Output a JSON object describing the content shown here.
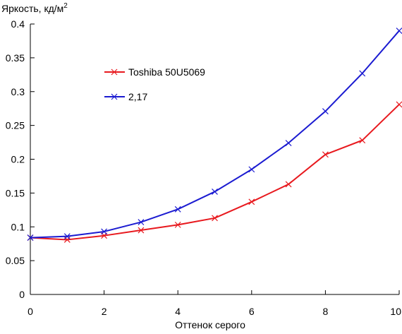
{
  "chart_data": {
    "type": "line",
    "title": "",
    "ylabel": "Яркость, кд/м",
    "ylabel_sup": "2",
    "xlabel": "Оттенок серого",
    "xlim": [
      0,
      10
    ],
    "ylim": [
      0,
      0.4
    ],
    "x_ticks": [
      0,
      2,
      4,
      6,
      8,
      10
    ],
    "x_tick_labels": [
      "0",
      "2",
      "4",
      "6",
      "8",
      "10"
    ],
    "y_ticks": [
      0,
      0.05,
      0.1,
      0.15,
      0.2,
      0.25,
      0.3,
      0.35,
      0.4
    ],
    "y_tick_labels": [
      "0",
      "0.05",
      "0.1",
      "0.15",
      "0.2",
      "0.25",
      "0.3",
      "0.35",
      "0.4"
    ],
    "grid": false,
    "legend_position": "upper-left-inside",
    "marker": "x",
    "x": [
      0,
      1,
      2,
      3,
      4,
      5,
      6,
      7,
      8,
      9,
      10
    ],
    "series": [
      {
        "name": "Toshiba 50U5069",
        "color": "#e8191e",
        "values": [
          0.084,
          0.081,
          0.087,
          0.095,
          0.103,
          0.113,
          0.137,
          0.163,
          0.207,
          0.228,
          0.281
        ]
      },
      {
        "name": "2,17",
        "color": "#1b1bd1",
        "values": [
          0.084,
          0.086,
          0.093,
          0.107,
          0.126,
          0.152,
          0.185,
          0.224,
          0.271,
          0.327,
          0.39
        ]
      }
    ]
  }
}
